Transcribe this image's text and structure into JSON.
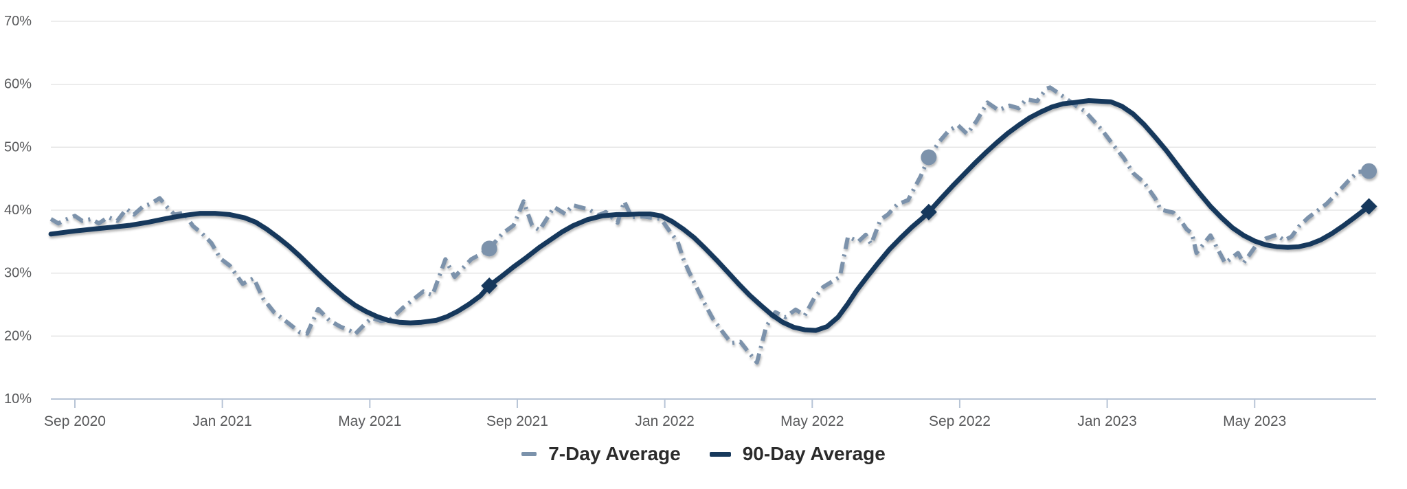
{
  "colors": {
    "series_7day": "#7b92ab",
    "series_90day": "#17395c",
    "grid": "#e2e2e2",
    "axis": "#b7c4d6",
    "axis_text": "#58595b",
    "legend_text": "#2b2b2b",
    "background": "#ffffff"
  },
  "chart_data": {
    "type": "line",
    "title": "",
    "grid": "horizontal",
    "legend_position": "bottom-center",
    "y_axis": {
      "min": 10,
      "max": 70,
      "tick_values": [
        70,
        60,
        50,
        40,
        30,
        20,
        10
      ],
      "tick_labels": [
        "70%",
        "60%",
        "50%",
        "40%",
        "30%",
        "20%",
        "10%"
      ]
    },
    "x_axis": {
      "unit": "months since Sep 2020 tick",
      "min_month": -0.65,
      "max_month": 35.3,
      "tick_months": [
        0,
        4,
        8,
        12,
        16,
        20,
        24,
        28,
        32
      ],
      "tick_labels": [
        "Sep 2020",
        "Jan 2021",
        "May 2021",
        "Sep 2021",
        "Jan 2022",
        "May 2022",
        "Sep 2022",
        "Jan 2023",
        "May 2023"
      ]
    },
    "series": [
      {
        "name": "7-Day Average",
        "style": "dash-dot",
        "color": "#7b92ab",
        "points": [
          [
            -0.65,
            38.6
          ],
          [
            -0.45,
            37.9
          ],
          [
            -0.25,
            38.5
          ],
          [
            0,
            39.1
          ],
          [
            0.2,
            38.3
          ],
          [
            0.45,
            38.6
          ],
          [
            0.65,
            37.9
          ],
          [
            0.9,
            38.9
          ],
          [
            1.15,
            38.3
          ],
          [
            1.4,
            40.2
          ],
          [
            1.6,
            39.3
          ],
          [
            1.85,
            40.6
          ],
          [
            2.05,
            41.0
          ],
          [
            2.3,
            41.9
          ],
          [
            2.5,
            40.5
          ],
          [
            2.7,
            39.3
          ],
          [
            2.95,
            39.6
          ],
          [
            3.2,
            37.5
          ],
          [
            3.45,
            36.3
          ],
          [
            3.7,
            34.8
          ],
          [
            3.95,
            32.3
          ],
          [
            4.2,
            31.2
          ],
          [
            4.55,
            28.3
          ],
          [
            4.85,
            29.2
          ],
          [
            5.1,
            26.0
          ],
          [
            5.4,
            23.8
          ],
          [
            5.8,
            22.0
          ],
          [
            6.1,
            20.6
          ],
          [
            6.3,
            20.4
          ],
          [
            6.6,
            24.3
          ],
          [
            6.9,
            22.5
          ],
          [
            7.2,
            21.5
          ],
          [
            7.45,
            20.9
          ],
          [
            7.6,
            20.3
          ],
          [
            7.85,
            21.8
          ],
          [
            8.05,
            22.9
          ],
          [
            8.3,
            22.4
          ],
          [
            8.55,
            22.6
          ],
          [
            8.9,
            24.5
          ],
          [
            9.45,
            27.1
          ],
          [
            9.7,
            26.5
          ],
          [
            10.05,
            32.2
          ],
          [
            10.3,
            29.4
          ],
          [
            10.75,
            32.2
          ],
          [
            11.0,
            33.0
          ],
          [
            11.24,
            33.9
          ],
          [
            11.6,
            36.3
          ],
          [
            11.9,
            37.6
          ],
          [
            12.17,
            41.4
          ],
          [
            12.4,
            37.6
          ],
          [
            12.6,
            36.8
          ],
          [
            13.0,
            40.5
          ],
          [
            13.3,
            39.4
          ],
          [
            13.5,
            40.8
          ],
          [
            13.95,
            40.1
          ],
          [
            14.2,
            39.2
          ],
          [
            14.4,
            39.7
          ],
          [
            14.72,
            38.0
          ],
          [
            14.9,
            41.4
          ],
          [
            15.1,
            38.9
          ],
          [
            15.4,
            39.0
          ],
          [
            15.9,
            38.6
          ],
          [
            16.15,
            36.5
          ],
          [
            16.35,
            35.0
          ],
          [
            16.5,
            32.3
          ],
          [
            16.65,
            30.3
          ],
          [
            16.85,
            27.9
          ],
          [
            17.05,
            25.5
          ],
          [
            17.3,
            22.8
          ],
          [
            17.55,
            20.8
          ],
          [
            17.8,
            18.9
          ],
          [
            18.05,
            19.1
          ],
          [
            18.25,
            17.6
          ],
          [
            18.5,
            15.8
          ],
          [
            18.75,
            21.5
          ],
          [
            19.0,
            23.8
          ],
          [
            19.27,
            23.0
          ],
          [
            19.55,
            24.2
          ],
          [
            19.8,
            23.3
          ],
          [
            20.05,
            26.0
          ],
          [
            20.3,
            27.8
          ],
          [
            20.55,
            28.7
          ],
          [
            20.75,
            29.4
          ],
          [
            20.97,
            35.8
          ],
          [
            21.25,
            35.0
          ],
          [
            21.45,
            36.1
          ],
          [
            21.6,
            34.6
          ],
          [
            21.85,
            38.5
          ],
          [
            22.05,
            39.3
          ],
          [
            22.3,
            40.9
          ],
          [
            22.6,
            41.6
          ],
          [
            22.75,
            43.3
          ],
          [
            22.95,
            45.5
          ],
          [
            23.16,
            48.4
          ],
          [
            23.45,
            50.9
          ],
          [
            23.7,
            52.6
          ],
          [
            23.95,
            53.5
          ],
          [
            24.2,
            52.1
          ],
          [
            24.45,
            54.1
          ],
          [
            24.75,
            57.1
          ],
          [
            25.05,
            55.9
          ],
          [
            25.35,
            56.6
          ],
          [
            25.6,
            56.2
          ],
          [
            25.8,
            57.6
          ],
          [
            26.1,
            57.3
          ],
          [
            26.35,
            59.3
          ],
          [
            26.45,
            59.5
          ],
          [
            26.7,
            58.5
          ],
          [
            27.15,
            56.6
          ],
          [
            27.4,
            55.7
          ],
          [
            27.85,
            52.8
          ],
          [
            28.2,
            50.1
          ],
          [
            28.45,
            48.3
          ],
          [
            28.7,
            45.9
          ],
          [
            29.0,
            44.4
          ],
          [
            29.3,
            41.9
          ],
          [
            29.45,
            40.1
          ],
          [
            29.8,
            39.6
          ],
          [
            30.0,
            38.3
          ],
          [
            30.15,
            37.0
          ],
          [
            30.3,
            36.3
          ],
          [
            30.42,
            33.2
          ],
          [
            30.65,
            34.9
          ],
          [
            30.8,
            36.0
          ],
          [
            31.2,
            31.6
          ],
          [
            31.55,
            33.2
          ],
          [
            31.7,
            31.6
          ],
          [
            32.05,
            34.5
          ],
          [
            32.3,
            35.5
          ],
          [
            32.6,
            36.1
          ],
          [
            32.8,
            35.2
          ],
          [
            33.0,
            35.8
          ],
          [
            33.2,
            37.4
          ],
          [
            33.45,
            38.8
          ],
          [
            33.7,
            39.9
          ],
          [
            33.95,
            41.0
          ],
          [
            34.25,
            42.8
          ],
          [
            34.55,
            44.7
          ],
          [
            34.8,
            46.1
          ],
          [
            35.1,
            46.2
          ]
        ]
      },
      {
        "name": "90-Day Average",
        "style": "solid",
        "color": "#17395c",
        "points": [
          [
            -0.65,
            36.2
          ],
          [
            0,
            36.7
          ],
          [
            0.5,
            37.0
          ],
          [
            1.0,
            37.3
          ],
          [
            1.5,
            37.6
          ],
          [
            2.0,
            38.1
          ],
          [
            2.5,
            38.7
          ],
          [
            3.0,
            39.2
          ],
          [
            3.4,
            39.5
          ],
          [
            3.8,
            39.5
          ],
          [
            4.2,
            39.3
          ],
          [
            4.6,
            38.8
          ],
          [
            4.9,
            38.1
          ],
          [
            5.2,
            37.0
          ],
          [
            5.5,
            35.7
          ],
          [
            5.8,
            34.3
          ],
          [
            6.1,
            32.7
          ],
          [
            6.4,
            31.0
          ],
          [
            6.7,
            29.3
          ],
          [
            7.0,
            27.7
          ],
          [
            7.3,
            26.2
          ],
          [
            7.6,
            24.9
          ],
          [
            7.9,
            23.9
          ],
          [
            8.2,
            23.1
          ],
          [
            8.5,
            22.5
          ],
          [
            8.8,
            22.2
          ],
          [
            9.1,
            22.1
          ],
          [
            9.4,
            22.2
          ],
          [
            9.8,
            22.5
          ],
          [
            10.1,
            23.1
          ],
          [
            10.4,
            24.0
          ],
          [
            10.7,
            25.1
          ],
          [
            11.0,
            26.4
          ],
          [
            11.24,
            28.0
          ],
          [
            11.6,
            29.6
          ],
          [
            11.9,
            31.0
          ],
          [
            12.25,
            32.5
          ],
          [
            12.6,
            34.1
          ],
          [
            12.9,
            35.3
          ],
          [
            13.2,
            36.5
          ],
          [
            13.5,
            37.5
          ],
          [
            13.9,
            38.5
          ],
          [
            14.3,
            39.1
          ],
          [
            14.7,
            39.3
          ],
          [
            15.0,
            39.3
          ],
          [
            15.3,
            39.4
          ],
          [
            15.6,
            39.4
          ],
          [
            15.9,
            39.1
          ],
          [
            16.2,
            38.2
          ],
          [
            16.5,
            37.0
          ],
          [
            16.8,
            35.6
          ],
          [
            17.1,
            33.9
          ],
          [
            17.4,
            32.1
          ],
          [
            17.7,
            30.2
          ],
          [
            18.0,
            28.3
          ],
          [
            18.3,
            26.5
          ],
          [
            18.6,
            24.9
          ],
          [
            18.9,
            23.4
          ],
          [
            19.2,
            22.2
          ],
          [
            19.5,
            21.4
          ],
          [
            19.8,
            21.0
          ],
          [
            20.1,
            20.9
          ],
          [
            20.4,
            21.5
          ],
          [
            20.7,
            23.0
          ],
          [
            20.95,
            25.0
          ],
          [
            21.2,
            27.2
          ],
          [
            21.5,
            29.5
          ],
          [
            21.8,
            31.7
          ],
          [
            22.1,
            33.8
          ],
          [
            22.4,
            35.6
          ],
          [
            22.7,
            37.3
          ],
          [
            23.0,
            38.8
          ],
          [
            23.16,
            39.7
          ],
          [
            23.5,
            41.9
          ],
          [
            23.8,
            43.8
          ],
          [
            24.1,
            45.6
          ],
          [
            24.4,
            47.4
          ],
          [
            24.7,
            49.1
          ],
          [
            25.0,
            50.7
          ],
          [
            25.3,
            52.2
          ],
          [
            25.6,
            53.5
          ],
          [
            25.9,
            54.7
          ],
          [
            26.2,
            55.6
          ],
          [
            26.5,
            56.4
          ],
          [
            26.8,
            56.9
          ],
          [
            27.1,
            57.1
          ],
          [
            27.5,
            57.4
          ],
          [
            28.1,
            57.2
          ],
          [
            28.4,
            56.5
          ],
          [
            28.7,
            55.3
          ],
          [
            29.0,
            53.6
          ],
          [
            29.3,
            51.6
          ],
          [
            29.6,
            49.5
          ],
          [
            29.9,
            47.2
          ],
          [
            30.2,
            44.9
          ],
          [
            30.5,
            42.7
          ],
          [
            30.8,
            40.6
          ],
          [
            31.1,
            38.8
          ],
          [
            31.4,
            37.2
          ],
          [
            31.7,
            36.0
          ],
          [
            32.0,
            35.1
          ],
          [
            32.3,
            34.5
          ],
          [
            32.6,
            34.2
          ],
          [
            32.9,
            34.1
          ],
          [
            33.2,
            34.2
          ],
          [
            33.5,
            34.6
          ],
          [
            33.8,
            35.3
          ],
          [
            34.1,
            36.3
          ],
          [
            34.4,
            37.5
          ],
          [
            34.7,
            38.8
          ],
          [
            35.1,
            40.6
          ]
        ]
      }
    ],
    "markers": [
      {
        "series": "7-Day Average",
        "shape": "circle",
        "month": 11.24,
        "value": 33.9
      },
      {
        "series": "90-Day Average",
        "shape": "diamond",
        "month": 11.24,
        "value": 28.0
      },
      {
        "series": "7-Day Average",
        "shape": "circle",
        "month": 23.16,
        "value": 48.4
      },
      {
        "series": "90-Day Average",
        "shape": "diamond",
        "month": 23.16,
        "value": 39.7
      },
      {
        "series": "7-Day Average",
        "shape": "circle",
        "month": 35.1,
        "value": 46.2
      },
      {
        "series": "90-Day Average",
        "shape": "diamond",
        "month": 35.1,
        "value": 40.6
      }
    ],
    "legend": [
      {
        "label": "7-Day Average",
        "swatch": "short-dash"
      },
      {
        "label": "90-Day Average",
        "swatch": "long-dash"
      }
    ]
  }
}
